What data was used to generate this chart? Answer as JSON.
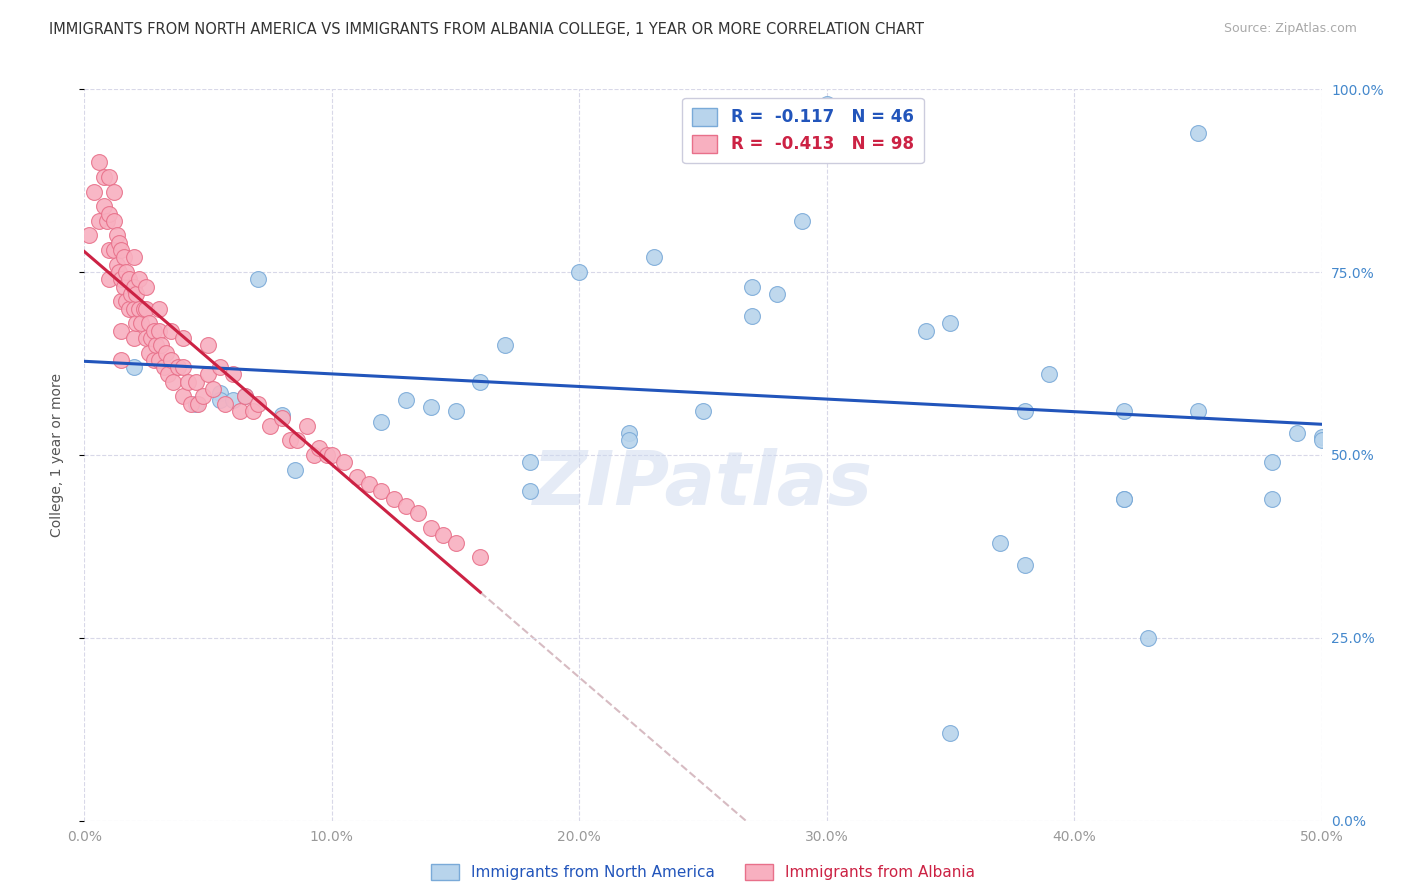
{
  "title": "IMMIGRANTS FROM NORTH AMERICA VS IMMIGRANTS FROM ALBANIA COLLEGE, 1 YEAR OR MORE CORRELATION CHART",
  "source": "Source: ZipAtlas.com",
  "xlabel_label_blue": "Immigrants from North America",
  "xlabel_label_pink": "Immigrants from Albania",
  "ylabel_label": "College, 1 year or more",
  "legend_blue_R": "-0.117",
  "legend_blue_N": "46",
  "legend_pink_R": "-0.413",
  "legend_pink_N": "98",
  "blue_color": "#b8d4ec",
  "blue_edge": "#7aaad8",
  "pink_color": "#f8b0c0",
  "pink_edge": "#e8708a",
  "trend_blue_color": "#2255bb",
  "trend_pink_color": "#cc2244",
  "trend_dashed_color": "#d0b0b8",
  "watermark": "ZIPatlas",
  "xmin": 0.0,
  "xmax": 0.5,
  "ymin": 0.0,
  "ymax": 1.0,
  "xticks": [
    0.0,
    0.1,
    0.2,
    0.3,
    0.4,
    0.5
  ],
  "yticks": [
    0.0,
    0.25,
    0.5,
    0.75,
    1.0
  ],
  "blue_x": [
    0.02,
    0.045,
    0.055,
    0.055,
    0.06,
    0.065,
    0.07,
    0.08,
    0.085,
    0.12,
    0.13,
    0.14,
    0.15,
    0.16,
    0.17,
    0.18,
    0.18,
    0.2,
    0.22,
    0.22,
    0.23,
    0.25,
    0.27,
    0.27,
    0.28,
    0.29,
    0.29,
    0.3,
    0.34,
    0.35,
    0.37,
    0.38,
    0.38,
    0.39,
    0.42,
    0.42,
    0.43,
    0.45,
    0.45,
    0.48,
    0.49,
    0.5,
    0.5,
    0.48,
    0.42,
    0.35
  ],
  "blue_y": [
    0.62,
    0.57,
    0.585,
    0.575,
    0.575,
    0.58,
    0.74,
    0.555,
    0.48,
    0.545,
    0.575,
    0.565,
    0.56,
    0.6,
    0.65,
    0.49,
    0.45,
    0.75,
    0.53,
    0.52,
    0.77,
    0.56,
    0.69,
    0.73,
    0.72,
    0.82,
    0.94,
    0.98,
    0.67,
    0.68,
    0.38,
    0.35,
    0.56,
    0.61,
    0.44,
    0.56,
    0.25,
    0.94,
    0.56,
    0.49,
    0.53,
    0.525,
    0.52,
    0.44,
    0.44,
    0.12
  ],
  "pink_x": [
    0.002,
    0.004,
    0.006,
    0.006,
    0.008,
    0.008,
    0.009,
    0.01,
    0.01,
    0.01,
    0.01,
    0.012,
    0.012,
    0.012,
    0.013,
    0.013,
    0.014,
    0.014,
    0.015,
    0.015,
    0.015,
    0.015,
    0.015,
    0.016,
    0.016,
    0.017,
    0.017,
    0.018,
    0.018,
    0.019,
    0.02,
    0.02,
    0.02,
    0.02,
    0.021,
    0.021,
    0.022,
    0.022,
    0.023,
    0.024,
    0.025,
    0.025,
    0.025,
    0.026,
    0.026,
    0.027,
    0.028,
    0.028,
    0.029,
    0.03,
    0.03,
    0.03,
    0.031,
    0.032,
    0.033,
    0.034,
    0.035,
    0.035,
    0.036,
    0.038,
    0.04,
    0.04,
    0.04,
    0.042,
    0.043,
    0.045,
    0.046,
    0.048,
    0.05,
    0.05,
    0.052,
    0.055,
    0.057,
    0.06,
    0.063,
    0.065,
    0.068,
    0.07,
    0.075,
    0.08,
    0.083,
    0.086,
    0.09,
    0.093,
    0.095,
    0.098,
    0.1,
    0.105,
    0.11,
    0.115,
    0.12,
    0.125,
    0.13,
    0.135,
    0.14,
    0.145,
    0.15,
    0.16
  ],
  "pink_y": [
    0.8,
    0.86,
    0.82,
    0.9,
    0.88,
    0.84,
    0.82,
    0.88,
    0.83,
    0.78,
    0.74,
    0.86,
    0.82,
    0.78,
    0.8,
    0.76,
    0.79,
    0.75,
    0.78,
    0.74,
    0.71,
    0.67,
    0.63,
    0.77,
    0.73,
    0.75,
    0.71,
    0.74,
    0.7,
    0.72,
    0.77,
    0.73,
    0.7,
    0.66,
    0.72,
    0.68,
    0.74,
    0.7,
    0.68,
    0.7,
    0.73,
    0.7,
    0.66,
    0.68,
    0.64,
    0.66,
    0.67,
    0.63,
    0.65,
    0.7,
    0.67,
    0.63,
    0.65,
    0.62,
    0.64,
    0.61,
    0.67,
    0.63,
    0.6,
    0.62,
    0.66,
    0.62,
    0.58,
    0.6,
    0.57,
    0.6,
    0.57,
    0.58,
    0.65,
    0.61,
    0.59,
    0.62,
    0.57,
    0.61,
    0.56,
    0.58,
    0.56,
    0.57,
    0.54,
    0.55,
    0.52,
    0.52,
    0.54,
    0.5,
    0.51,
    0.5,
    0.5,
    0.49,
    0.47,
    0.46,
    0.45,
    0.44,
    0.43,
    0.42,
    0.4,
    0.39,
    0.38,
    0.36
  ]
}
